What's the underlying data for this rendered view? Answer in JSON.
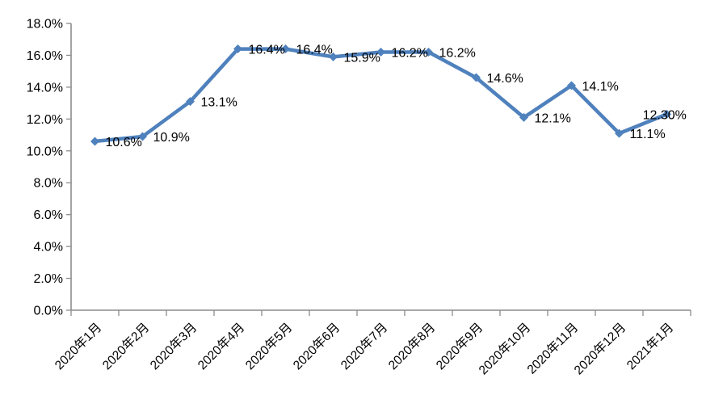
{
  "chart_data": {
    "type": "line",
    "title": "",
    "categories": [
      "2020年1月",
      "2020年2月",
      "2020年3月",
      "2020年4月",
      "2020年5月",
      "2020年6月",
      "2020年7月",
      "2020年8月",
      "2020年9月",
      "2020年10月",
      "2020年11月",
      "2020年12月",
      "2021年1月"
    ],
    "series": [
      {
        "name": "",
        "values": [
          10.6,
          10.9,
          13.1,
          16.4,
          16.4,
          15.9,
          16.2,
          16.2,
          14.6,
          12.1,
          14.1,
          11.1,
          12.3
        ],
        "labels": [
          "10.6%",
          "10.9%",
          "13.1%",
          "16.4%",
          "16.4%",
          "15.9%",
          "16.2%",
          "16.2%",
          "14.6%",
          "12.1%",
          "14.1%",
          "11.1%",
          "12.30%"
        ],
        "color": "#4F81BD",
        "marker": "diamond"
      }
    ],
    "y_axis": {
      "min": 0,
      "max": 18,
      "step": 2,
      "tick_labels": [
        "0.0%",
        "2.0%",
        "4.0%",
        "6.0%",
        "8.0%",
        "10.0%",
        "12.0%",
        "14.0%",
        "16.0%",
        "18.0%"
      ]
    },
    "x_axis": {
      "label_rotation": -45
    },
    "grid": false,
    "legend": "none",
    "colors": {
      "axis": "#8C8C8C",
      "text": "#000000",
      "background": "#FFFFFF"
    }
  }
}
